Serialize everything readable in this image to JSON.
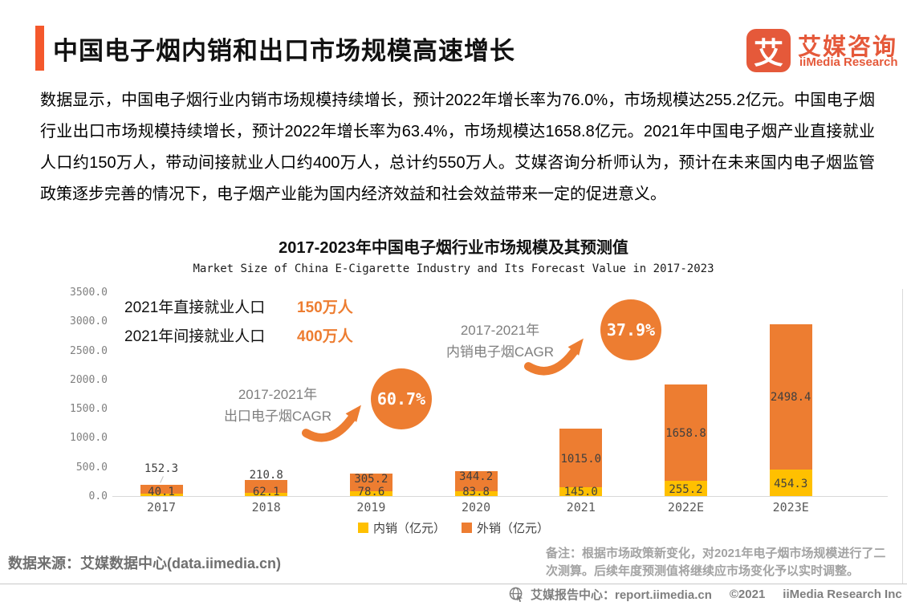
{
  "header": {
    "title": "中国电子烟内销和出口市场规模高速增长",
    "logo": {
      "glyph": "艾",
      "name_cn": "艾媒咨询",
      "name_en": "iiMedia Research"
    }
  },
  "intro": {
    "text": "数据显示，中国电子烟行业内销市场规模持续增长，预计2022年增长率为76.0%，市场规模达255.2亿元。中国电子烟行业出口市场规模持续增长，预计2022年增长率为63.4%，市场规模达1658.8亿元。2021年中国电子烟产业直接就业人口约150万人，带动间接就业人口约400万人，总计约550万人。艾媒咨询分析师认为，预计在未来国内电子烟监管政策逐步完善的情况下，电子烟产业能为国内经济效益和社会效益带来一定的促进意义。"
  },
  "chart_data": {
    "type": "bar",
    "stacked": true,
    "title": "2017-2023年中国电子烟行业市场规模及其预测值",
    "subtitle": "Market Size of China E-Cigarette Industry and Its Forecast Value in 2017-2023",
    "categories": [
      "2017",
      "2018",
      "2019",
      "2020",
      "2021",
      "2022E",
      "2023E"
    ],
    "series": [
      {
        "name": "内销（亿元）",
        "color": "#FFC000",
        "values": [
          40.1,
          62.1,
          78.6,
          83.8,
          145.0,
          255.2,
          454.3
        ]
      },
      {
        "name": "外销（亿元）",
        "color": "#ED7D31",
        "values": [
          152.3,
          210.8,
          305.2,
          344.2,
          1015.0,
          1658.8,
          2498.4
        ]
      }
    ],
    "ylim": [
      0,
      3500
    ],
    "yticks": [
      0,
      500,
      1000,
      1500,
      2000,
      2500,
      3000,
      3500
    ],
    "grid": false,
    "legend_position": "bottom"
  },
  "annotations": {
    "direct_employment_label": "2021年直接就业人口",
    "direct_employment_value": "150万人",
    "indirect_employment_label": "2021年间接就业人口",
    "indirect_employment_value": "400万人",
    "export_cagr_line1": "2017-2021年",
    "export_cagr_line2": "出口电子烟CAGR",
    "export_cagr_value": "60.7%",
    "domestic_cagr_line1": "2017-2021年",
    "domestic_cagr_line2": "内销电子烟CAGR",
    "domestic_cagr_value": "37.9%"
  },
  "footer": {
    "source": "数据来源：艾媒数据中心(data.iimedia.cn)",
    "note": "备注：根据市场政策新变化，对2021年电子烟市场规模进行了二次测算。后续年度预测值将继续应市场变化予以实时调整。",
    "report_center": "艾媒报告中心：report.iimedia.cn",
    "copyright": "©2021",
    "company": "iiMedia Research Inc"
  },
  "colors": {
    "accent": "#F4582C",
    "logo_orange": "#E5593A",
    "bar_orange": "#ED7D31",
    "bar_yellow": "#FFC000",
    "axis_gray": "#808080",
    "value_label": "#3F3F3F",
    "note_gray": "#A3A3A3",
    "footer_gray": "#7F7F7F"
  }
}
